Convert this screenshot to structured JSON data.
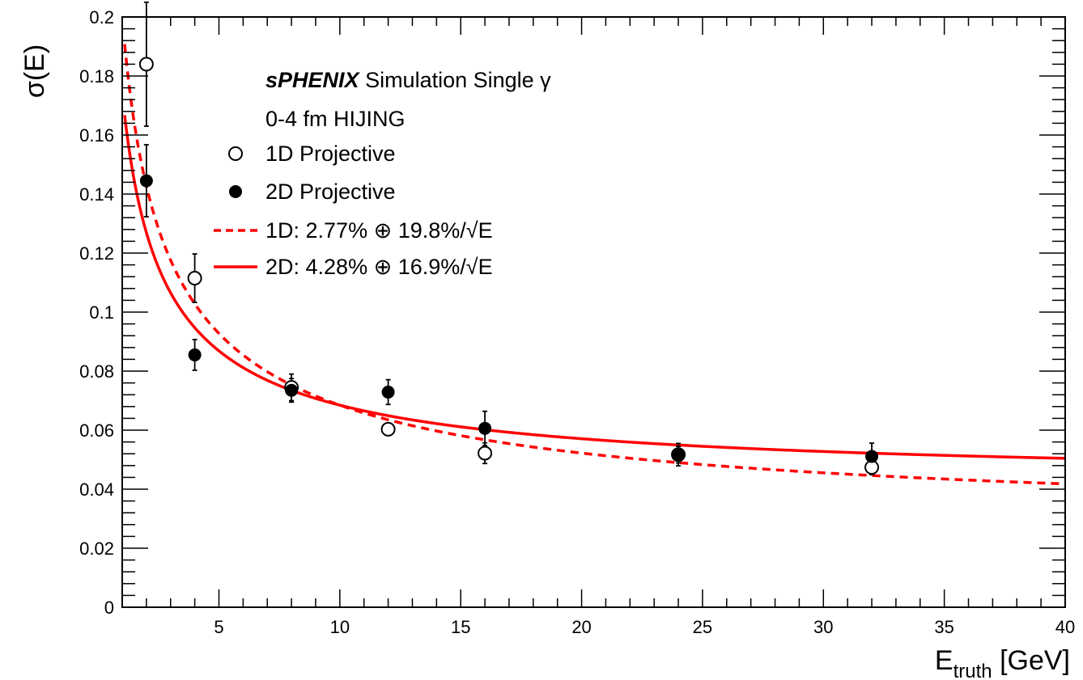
{
  "chart_data": {
    "type": "scatter",
    "title": "",
    "xlabel": "E",
    "xlabel_sub": "truth",
    "xlabel_unit": " [GeV]",
    "ylabel": "σ(E)",
    "xlim": [
      1,
      40
    ],
    "ylim": [
      0,
      0.2
    ],
    "x_ticks": [
      5,
      10,
      15,
      20,
      25,
      30,
      35,
      40
    ],
    "y_ticks": [
      0,
      0.02,
      0.04,
      0.06,
      0.08,
      0.1,
      0.12,
      0.14,
      0.16,
      0.18,
      0.2
    ],
    "y_tick_labels": [
      "0",
      "0.02",
      "0.04",
      "0.06",
      "0.08",
      "0.1",
      "0.12",
      "0.14",
      "0.16",
      "0.18",
      "0.2"
    ],
    "x_tick_labels": [
      "5",
      "10",
      "15",
      "20",
      "25",
      "30",
      "35",
      "40"
    ],
    "grid": false,
    "legend_position": "top-left",
    "colors": {
      "fit": "#ff0000",
      "marker": "#000000"
    },
    "annotations": {
      "experiment": "sPHENIX",
      "simulation": "Simulation Single γ",
      "centrality": "0-4 fm HIJING"
    },
    "series": [
      {
        "name": "1D Projective",
        "marker": "open-circle",
        "x": [
          2,
          4,
          8,
          12,
          16,
          24,
          32
        ],
        "y": [
          0.184,
          0.1115,
          0.0745,
          0.0603,
          0.0522,
          0.0517,
          0.0474
        ],
        "yerr": [
          0.021,
          0.0082,
          0.0045,
          0.002,
          0.0035,
          0.0028,
          0.0025
        ]
      },
      {
        "name": "2D Projective",
        "marker": "filled-circle",
        "x": [
          2,
          4,
          8,
          12,
          16,
          24,
          32
        ],
        "y": [
          0.1445,
          0.0855,
          0.0735,
          0.0729,
          0.0606,
          0.0517,
          0.0511
        ],
        "yerr": [
          0.0122,
          0.0052,
          0.004,
          0.0042,
          0.0058,
          0.0038,
          0.0045
        ]
      }
    ],
    "fits": [
      {
        "name": "1D: 2.77% ⊕ 19.8%/√E",
        "style": "dashed",
        "constant": 0.0277,
        "stochastic": 0.198,
        "x_start": 1.1
      },
      {
        "name": "2D: 4.28% ⊕ 16.9%/√E",
        "style": "solid",
        "constant": 0.0428,
        "stochastic": 0.169,
        "x_start": 1.1
      }
    ]
  }
}
